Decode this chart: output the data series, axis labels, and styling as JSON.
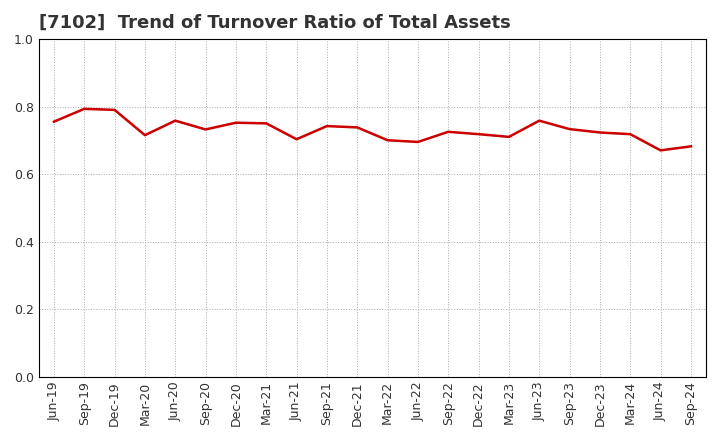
{
  "title": "[7102]  Trend of Turnover Ratio of Total Assets",
  "x_labels": [
    "Jun-19",
    "Sep-19",
    "Dec-19",
    "Mar-20",
    "Jun-20",
    "Sep-20",
    "Dec-20",
    "Mar-21",
    "Jun-21",
    "Sep-21",
    "Dec-21",
    "Mar-22",
    "Jun-22",
    "Sep-22",
    "Dec-22",
    "Mar-23",
    "Jun-23",
    "Sep-23",
    "Dec-23",
    "Mar-24",
    "Jun-24",
    "Sep-24"
  ],
  "y_values": [
    0.755,
    0.793,
    0.79,
    0.715,
    0.758,
    0.732,
    0.752,
    0.75,
    0.703,
    0.742,
    0.738,
    0.7,
    0.695,
    0.725,
    0.718,
    0.71,
    0.758,
    0.733,
    0.723,
    0.718,
    0.67,
    0.682
  ],
  "line_color": "#cc0000",
  "line_width": 1.8,
  "ylim": [
    0.0,
    1.0
  ],
  "yticks": [
    0.0,
    0.2,
    0.4,
    0.6,
    0.8,
    1.0
  ],
  "ytick_labels": [
    "0.0",
    "0.2",
    "0.4",
    "0.6",
    "0.8",
    "1.0"
  ],
  "background_color": "#ffffff",
  "grid_color": "#aaaaaa",
  "title_fontsize": 13,
  "tick_fontsize": 9,
  "title_color": "#333333"
}
